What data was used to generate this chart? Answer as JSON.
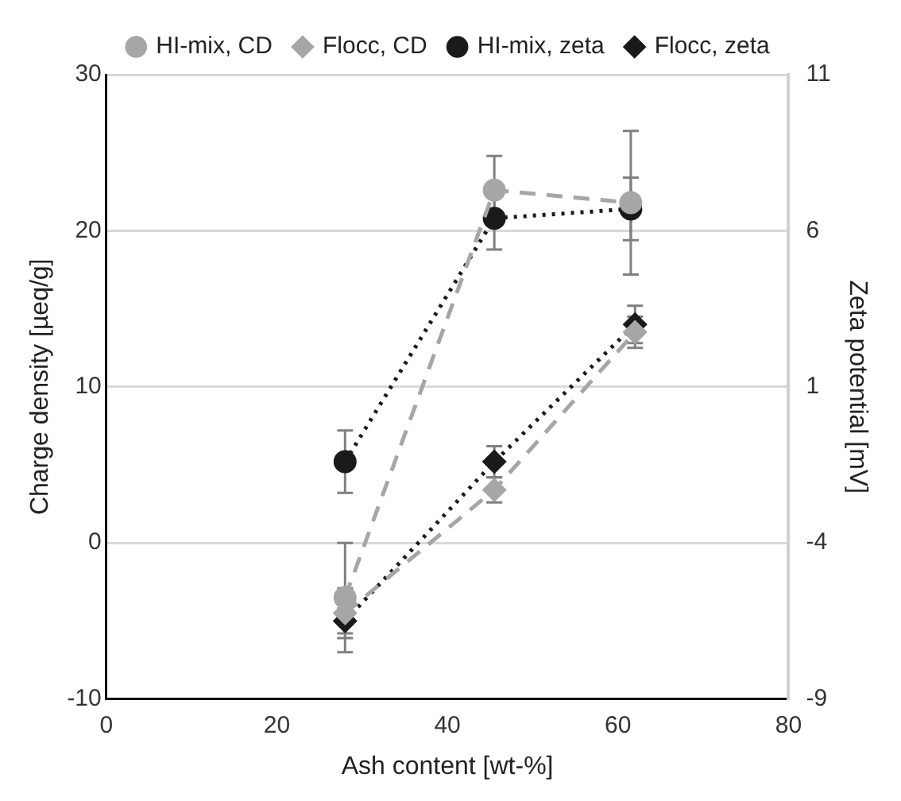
{
  "chart_data": {
    "type": "line",
    "xlabel": "Ash content [wt-%]",
    "ylabel": "Charge density [µeq/g]",
    "y2label": "Zeta potential [mV]",
    "xlim": [
      0,
      80
    ],
    "xticks": [
      0,
      20,
      40,
      60,
      80
    ],
    "ylim": [
      -10,
      30
    ],
    "yticks": [
      -10,
      0,
      10,
      20,
      30
    ],
    "y2lim": [
      -9,
      11
    ],
    "y2ticks": [
      -9,
      -4,
      1,
      6,
      11
    ],
    "grid": "y",
    "legend": "top",
    "series": [
      {
        "name": "HI-mix, CD",
        "color": "#a6a6a6",
        "marker": "circle",
        "line_style": "dashed",
        "x": [
          28,
          45.5,
          61.5
        ],
        "values": [
          -3.5,
          22.6,
          21.8
        ],
        "errors": [
          3.5,
          2.2,
          4.6
        ]
      },
      {
        "name": "Flocc, CD",
        "color": "#a6a6a6",
        "marker": "diamond",
        "line_style": "dashed",
        "x": [
          28,
          45.5,
          62
        ],
        "values": [
          -4.5,
          3.4,
          13.5
        ],
        "errors": [
          1.6,
          0.8,
          1
        ]
      },
      {
        "name": "HI-mix, zeta",
        "color": "#1a1a1a",
        "marker": "circle",
        "line_style": "dotted",
        "axis": "y2",
        "x": [
          28,
          45.5,
          61.5
        ],
        "values": [
          -1.4,
          6.4,
          6.7
        ],
        "errors": [
          1,
          1,
          1
        ]
      },
      {
        "name": "Flocc, zeta",
        "color": "#1a1a1a",
        "marker": "diamond",
        "line_style": "dotted",
        "axis": "y2",
        "x": [
          28,
          45.5,
          62
        ],
        "values": [
          -6.5,
          -1.4,
          3.0
        ],
        "errors": [
          0.4,
          0.5,
          0.6
        ]
      }
    ]
  }
}
